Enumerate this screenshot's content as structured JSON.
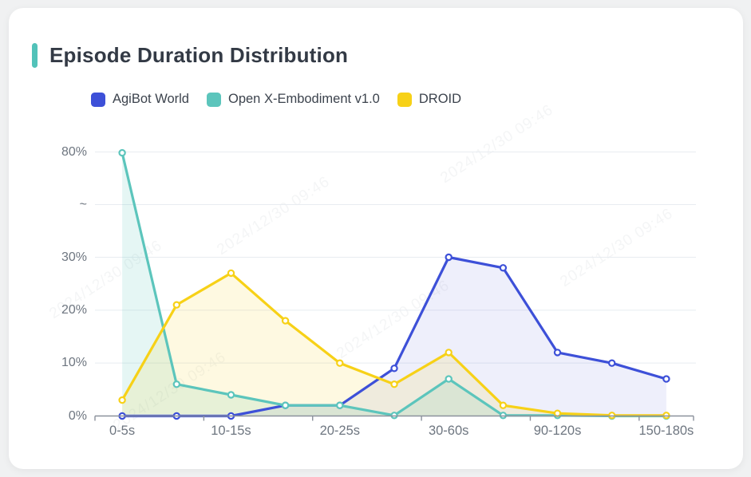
{
  "window": {
    "background": "#f0f1f2",
    "card_background": "#ffffff"
  },
  "header": {
    "title": "Episode Duration Distribution",
    "accent_color": "#52c2b9"
  },
  "watermark": {
    "text": "2024/12/30 09:46"
  },
  "chart_data": {
    "type": "line",
    "title": "Episode Duration Distribution",
    "legend_position": "top",
    "grid": true,
    "marker": "hollow-circle",
    "n_points": 11,
    "x_visible_labels": [
      "0-5s",
      "10-15s",
      "20-25s",
      "30-60s",
      "90-120s",
      "150-180s"
    ],
    "x_visible_label_indices": [
      0,
      2,
      4,
      6,
      8,
      10
    ],
    "y_axis": {
      "unit": "%",
      "ticks": [
        {
          "label": "0%",
          "value": 0
        },
        {
          "label": "10%",
          "value": 10
        },
        {
          "label": "20%",
          "value": 20
        },
        {
          "label": "30%",
          "value": 30
        },
        {
          "label": "~",
          "value": 55
        },
        {
          "label": "80%",
          "value": 80
        }
      ],
      "break_between": [
        30,
        80
      ]
    },
    "series": [
      {
        "name": "AgiBot World",
        "color": "#3d50d8",
        "fill": "rgba(61,80,216,0.09)",
        "values": [
          0,
          0,
          0,
          2,
          2,
          9,
          30,
          28,
          12,
          10,
          7
        ]
      },
      {
        "name": "Open X-Embodiment v1.0",
        "color": "#5cc5bc",
        "fill": "rgba(92,197,188,0.16)",
        "values": [
          79.6,
          6,
          4,
          2,
          2,
          0.1,
          7,
          0.1,
          0.1,
          0,
          0
        ]
      },
      {
        "name": "DROID",
        "color": "#f7d117",
        "fill": "rgba(247,209,23,0.13)",
        "values": [
          3,
          21,
          27,
          18,
          10,
          6,
          12,
          2,
          0.5,
          0.1,
          0.1
        ]
      }
    ]
  }
}
